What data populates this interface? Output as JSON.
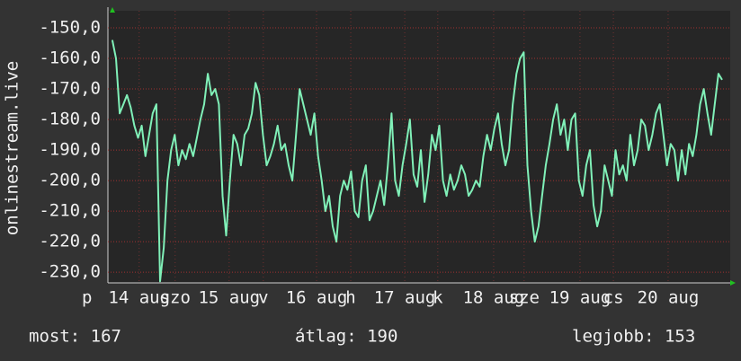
{
  "chart_data": {
    "type": "line",
    "y_label": "onlinestream.live",
    "color": "#80f0b8",
    "ylim": [
      -233.5,
      -144.4
    ],
    "yticks": [
      {
        "value": -150,
        "label": "-150,0"
      },
      {
        "value": -160,
        "label": "-160,0"
      },
      {
        "value": -170,
        "label": "-170,0"
      },
      {
        "value": -180,
        "label": "-180,0"
      },
      {
        "value": -190,
        "label": "-190,0"
      },
      {
        "value": -200,
        "label": "-200,0"
      },
      {
        "value": -210,
        "label": "-210,0"
      },
      {
        "value": -220,
        "label": "-220,0"
      },
      {
        "value": -230,
        "label": "-230,0"
      }
    ],
    "xlim": [
      -1.2,
      168.2
    ],
    "xticks": [
      {
        "value": -6.9,
        "label": "p"
      },
      {
        "value": 7.3,
        "label": "14 aug"
      },
      {
        "value": 17.1,
        "label": "szo"
      },
      {
        "value": 31.8,
        "label": "15 aug"
      },
      {
        "value": 41.1,
        "label": "v"
      },
      {
        "value": 55.6,
        "label": "16 aug"
      },
      {
        "value": 64.9,
        "label": "h"
      },
      {
        "value": 79.6,
        "label": "17 aug"
      },
      {
        "value": 88.6,
        "label": "k"
      },
      {
        "value": 103.8,
        "label": "18 aug"
      },
      {
        "value": 112.1,
        "label": "sze"
      },
      {
        "value": 127.3,
        "label": "19 aug"
      },
      {
        "value": 136.4,
        "label": "cs"
      },
      {
        "value": 151.3,
        "label": "20 aug"
      }
    ],
    "grid": true,
    "x": [
      0,
      1,
      2,
      3,
      4,
      5,
      6,
      7,
      8,
      9,
      10,
      11,
      12,
      13,
      14,
      15,
      16,
      17,
      18,
      19,
      20,
      21,
      22,
      23,
      24,
      25,
      26,
      27,
      28,
      29,
      30,
      31,
      32,
      33,
      34,
      35,
      36,
      37,
      38,
      39,
      40,
      41,
      42,
      43,
      44,
      45,
      46,
      47,
      48,
      49,
      50,
      51,
      52,
      53,
      54,
      55,
      56,
      57,
      58,
      59,
      60,
      61,
      62,
      63,
      64,
      65,
      66,
      67,
      68,
      69,
      70,
      71,
      72,
      73,
      74,
      75,
      76,
      77,
      78,
      79,
      80,
      81,
      82,
      83,
      84,
      85,
      86,
      87,
      88,
      89,
      90,
      91,
      92,
      93,
      94,
      95,
      96,
      97,
      98,
      99,
      100,
      101,
      102,
      103,
      104,
      105,
      106,
      107,
      108,
      109,
      110,
      111,
      112,
      113,
      114,
      115,
      116,
      117,
      118,
      119,
      120,
      121,
      122,
      123,
      124,
      125,
      126,
      127,
      128,
      129,
      130,
      131,
      132,
      133,
      134,
      135,
      136,
      137,
      138,
      139,
      140,
      141,
      142,
      143,
      144,
      145,
      146,
      147,
      148,
      149,
      150,
      151,
      152,
      153,
      154,
      155,
      156,
      157,
      158,
      159,
      160,
      161,
      162,
      163,
      164,
      165,
      166
    ],
    "values": [
      -154,
      -160,
      -178,
      -175,
      -172,
      -176,
      -182,
      -186,
      -182,
      -192,
      -185,
      -178,
      -175,
      -233,
      -222,
      -200,
      -190,
      -185,
      -195,
      -190,
      -193,
      -188,
      -192,
      -186,
      -180,
      -175,
      -165,
      -172,
      -170,
      -175,
      -205,
      -218,
      -200,
      -185,
      -188,
      -195,
      -185,
      -183,
      -178,
      -168,
      -172,
      -185,
      -195,
      -192,
      -188,
      -182,
      -190,
      -188,
      -195,
      -200,
      -185,
      -170,
      -175,
      -180,
      -185,
      -178,
      -192,
      -200,
      -210,
      -205,
      -215,
      -220,
      -205,
      -200,
      -203,
      -197,
      -210,
      -212,
      -200,
      -195,
      -213,
      -210,
      -205,
      -200,
      -208,
      -195,
      -178,
      -200,
      -205,
      -195,
      -188,
      -180,
      -198,
      -202,
      -190,
      -207,
      -198,
      -185,
      -190,
      -182,
      -200,
      -205,
      -198,
      -203,
      -200,
      -195,
      -198,
      -205,
      -203,
      -200,
      -202,
      -192,
      -185,
      -190,
      -183,
      -178,
      -188,
      -195,
      -190,
      -175,
      -165,
      -160,
      -158,
      -195,
      -210,
      -220,
      -215,
      -205,
      -195,
      -188,
      -180,
      -175,
      -185,
      -180,
      -190,
      -180,
      -178,
      -200,
      -205,
      -195,
      -190,
      -208,
      -215,
      -210,
      -195,
      -200,
      -205,
      -190,
      -198,
      -195,
      -200,
      -185,
      -195,
      -190,
      -180,
      -182,
      -190,
      -185,
      -178,
      -175,
      -185,
      -195,
      -188,
      -190,
      -200,
      -190,
      -198,
      -188,
      -192,
      -185,
      -175,
      -170,
      -178,
      -185,
      -175,
      -165,
      -167
    ],
    "footer": {
      "current": "most: 167",
      "average": "átlag: 190",
      "best": "legjobb: 153"
    }
  }
}
